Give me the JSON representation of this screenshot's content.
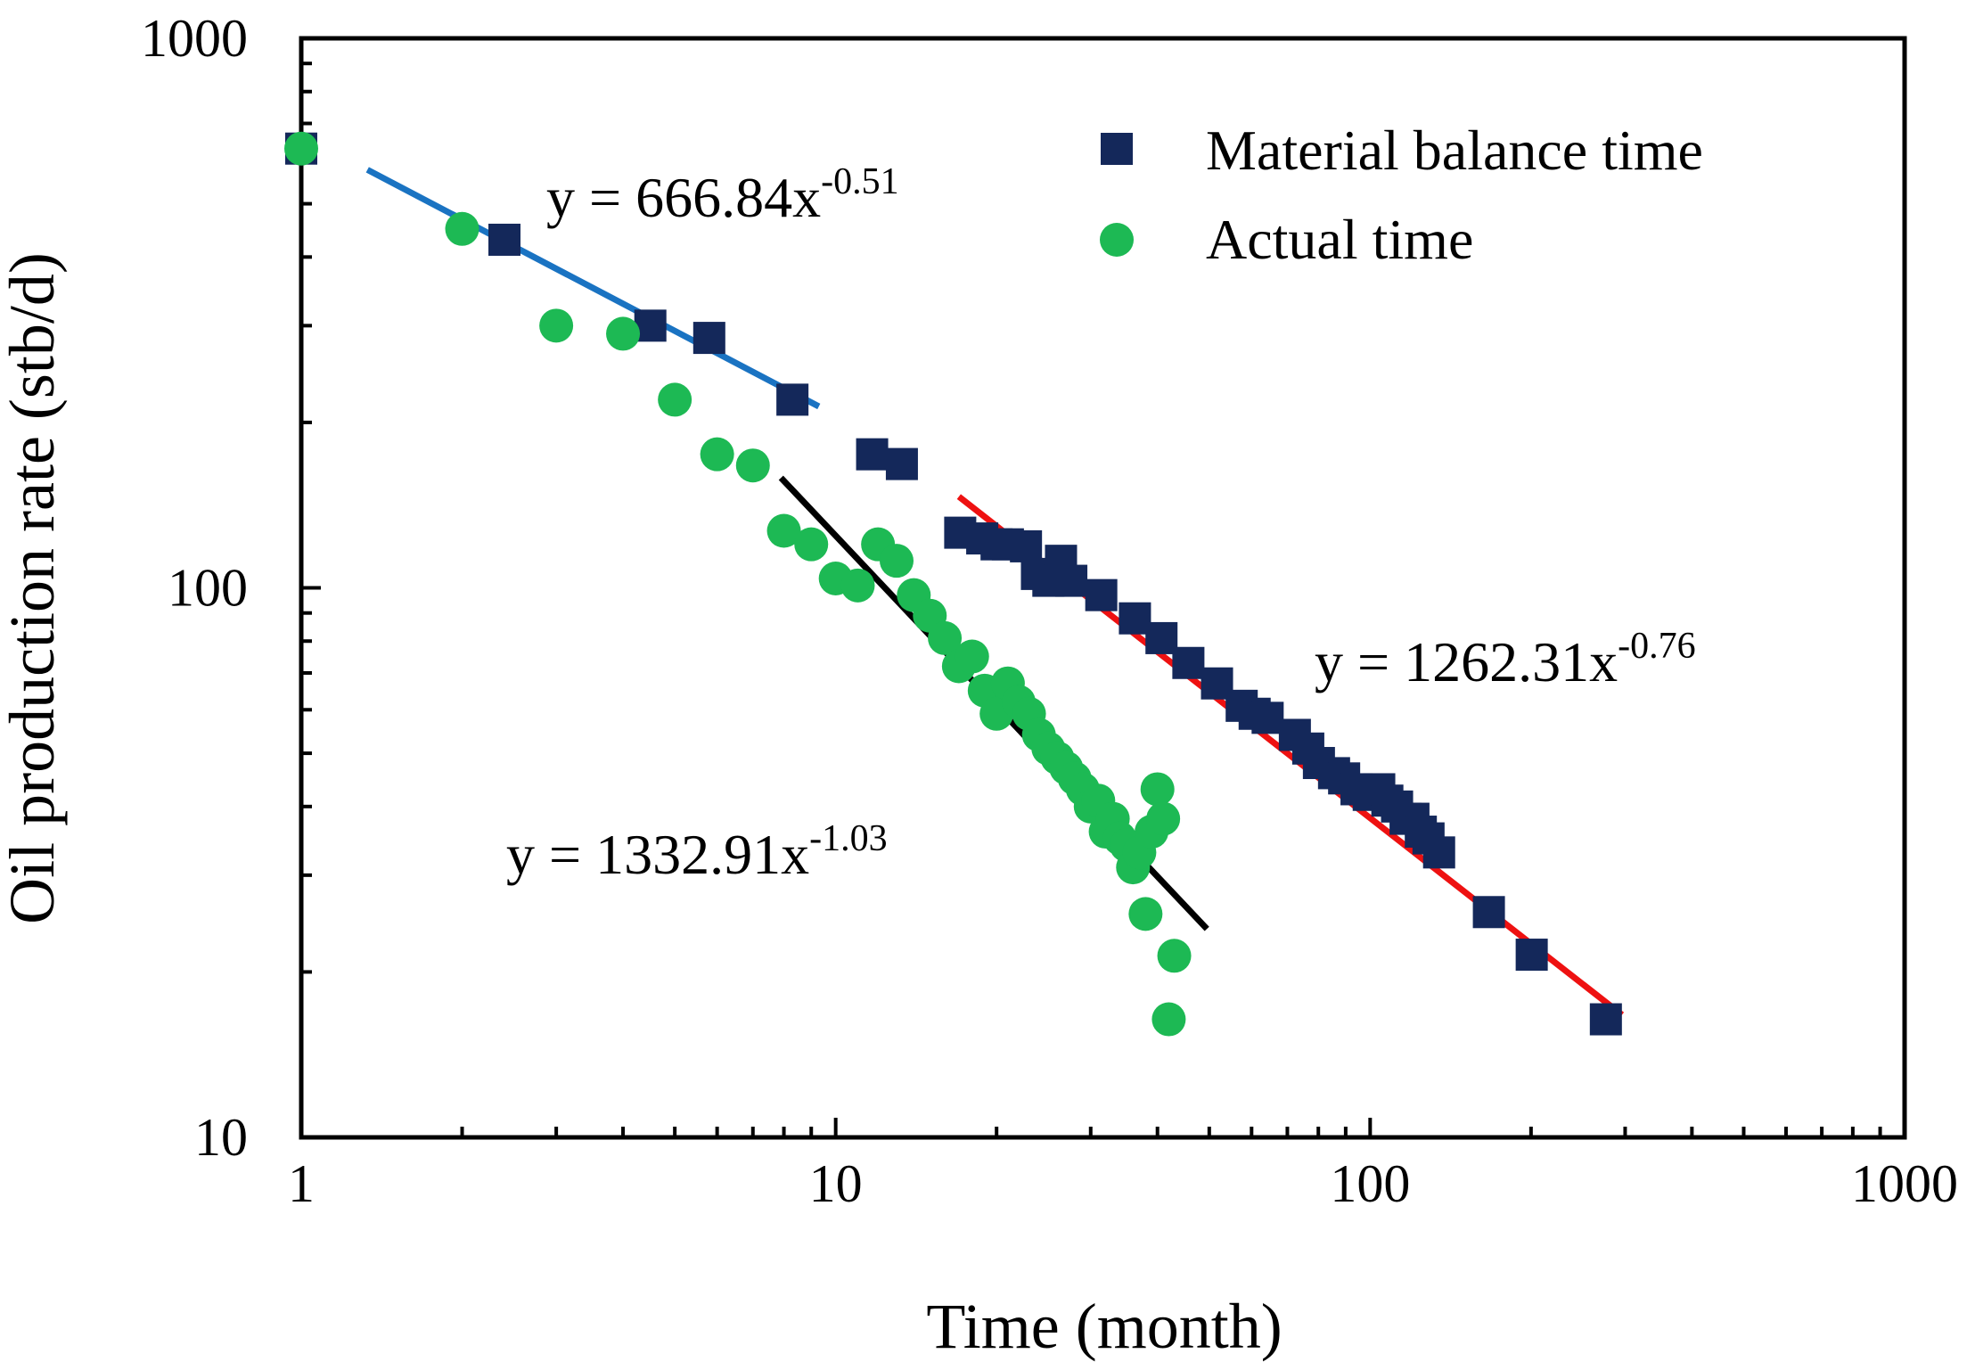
{
  "chart_data": {
    "type": "scatter",
    "title": "",
    "xlabel": "Time (month)",
    "ylabel": "Oil production rate (stb/d)",
    "xscale": "log",
    "yscale": "log",
    "xlim": [
      1,
      1000
    ],
    "ylim": [
      10,
      1000
    ],
    "x_ticks": [
      1,
      10,
      100,
      1000
    ],
    "x_tick_labels": [
      "1",
      "10",
      "100",
      "1000"
    ],
    "y_ticks": [
      10,
      100,
      1000
    ],
    "y_tick_labels": [
      "10",
      "100",
      "1000"
    ],
    "grid": false,
    "legend_position": "top-right",
    "colors": {
      "material_balance": "#14285a",
      "actual": "#1db954",
      "fit_blue": "#1a73c2",
      "fit_black": "#000000",
      "fit_red": "#ee1111"
    },
    "series": [
      {
        "name": "Material balance time",
        "marker": "square",
        "color": "#14285a",
        "x": [
          1.0,
          2.4,
          4.5,
          5.8,
          8.3,
          11.7,
          13.3,
          17.1,
          18.8,
          20.0,
          21.0,
          22.7,
          23.8,
          25.0,
          26.4,
          27.6,
          31.4,
          36.3,
          40.7,
          45.7,
          51.7,
          57.5,
          60.8,
          64.3,
          72.3,
          76.6,
          80.2,
          85.6,
          89.4,
          94.3,
          99.4,
          104.0,
          107.7,
          112.3,
          116.5,
          120.5,
          124.4,
          128.6,
          134.6,
          166.8,
          200.6,
          276.1
        ],
        "y": [
          630,
          430,
          300,
          285,
          220,
          175,
          168,
          126,
          123,
          120,
          120,
          119,
          106,
          103,
          112,
          103,
          97,
          88,
          81,
          73,
          67,
          61,
          59,
          58,
          54,
          51,
          48,
          46,
          45,
          43,
          42,
          43,
          41,
          40,
          38,
          38,
          36,
          35,
          33,
          25.7,
          21.5,
          16.4
        ]
      },
      {
        "name": "Actual time",
        "marker": "circle",
        "color": "#1db954",
        "x": [
          1,
          2,
          3,
          4,
          5,
          6,
          7,
          8,
          9,
          10,
          11,
          12,
          13,
          14,
          15,
          16,
          17,
          18,
          19,
          20,
          21,
          22,
          23,
          24,
          25,
          26,
          27,
          28,
          29,
          30,
          31,
          32,
          33,
          34,
          35,
          36,
          37,
          38,
          39,
          40,
          41,
          42,
          43
        ],
        "y": [
          630,
          450,
          300,
          290,
          220,
          175,
          167,
          127,
          120,
          104,
          101,
          120,
          112,
          97,
          89,
          81,
          72,
          75,
          65,
          59,
          67,
          62,
          59,
          54,
          51,
          49,
          47,
          45,
          43,
          40,
          41,
          36,
          38,
          35,
          34,
          31,
          33,
          25.5,
          36,
          43,
          38,
          16.4,
          21.4
        ]
      }
    ],
    "fits": [
      {
        "name": "fit-material-balance-early",
        "equation": "y = 666.84x",
        "exponent": "-0.51",
        "a": 666.84,
        "b": -0.51,
        "x_range": [
          1.33,
          9.3
        ],
        "color": "#1a73c2"
      },
      {
        "name": "fit-actual-time",
        "equation": "y = 1332.91x",
        "exponent": "-1.03",
        "a": 1332.91,
        "b": -1.03,
        "x_range": [
          7.9,
          49.5
        ],
        "color": "#000000"
      },
      {
        "name": "fit-material-balance-late",
        "equation": "y = 1262.31x",
        "exponent": "-0.76",
        "a": 1262.31,
        "b": -0.76,
        "x_range": [
          17.0,
          296.0
        ],
        "color": "#ee1111"
      }
    ]
  }
}
